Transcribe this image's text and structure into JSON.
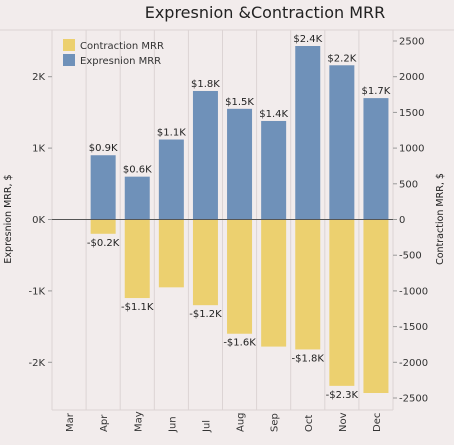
{
  "chart_data": {
    "type": "bar",
    "title": "Expresnion &Contraction MRR",
    "categories": [
      "Mar",
      "Apr",
      "May",
      "Jun",
      "Jul",
      "Aug",
      "Sep",
      "Oct",
      "Nov",
      "Dec"
    ],
    "series": [
      {
        "name": "Contraction MRR",
        "color": "#ecd06f",
        "axis": "right",
        "values": [
          null,
          -200,
          -1100,
          -950,
          -1200,
          -1600,
          -1780,
          -1820,
          -2330,
          -2430
        ],
        "labels": [
          "",
          "-$0.2K",
          "-$1.1K",
          "",
          "-$1.2K",
          "-$1.6K",
          "",
          "-$1.8K",
          "-$2.3K",
          ""
        ]
      },
      {
        "name": "Expresnion MRR",
        "color": "#6f91b9",
        "axis": "left",
        "values": [
          null,
          900,
          600,
          1120,
          1800,
          1550,
          1380,
          2430,
          2160,
          1700
        ],
        "labels": [
          "",
          "$0.9K",
          "$0.6K",
          "$1.1K",
          "$1.8K",
          "$1.5K",
          "$1.4K",
          "$2.4K",
          "$2.2K",
          "$1.7K"
        ]
      }
    ],
    "left_axis": {
      "label": "Expresnion MRR, $",
      "ylim": [
        -2520,
        2520
      ],
      "ticks": [
        2000,
        1000,
        0,
        -1000,
        -2000
      ],
      "tick_labels": [
        "2K",
        "1K",
        "0K",
        "-1K",
        "-2K"
      ]
    },
    "right_axis": {
      "label": "Contraction MRR, $",
      "ylim": [
        -2520,
        2520
      ],
      "ticks": [
        2500,
        2000,
        1500,
        1000,
        500,
        0,
        -500,
        -1000,
        -1500,
        -2000,
        -2500
      ],
      "tick_labels": [
        "2500",
        "2000",
        "1500",
        "1000",
        "500",
        "0",
        "-500",
        "-1000",
        "-1500",
        "-2000",
        "-2500"
      ]
    },
    "legend": {
      "position": "top-left",
      "entries": [
        {
          "name": "Contraction MRR",
          "color": "#ecd06f"
        },
        {
          "name": "Expresnion MRR",
          "color": "#6f91b9"
        }
      ]
    },
    "grid": {
      "vertical": true,
      "zero_line": true
    },
    "colors": {
      "background": "#f2ecec",
      "grid": "#dcd4d4"
    }
  }
}
